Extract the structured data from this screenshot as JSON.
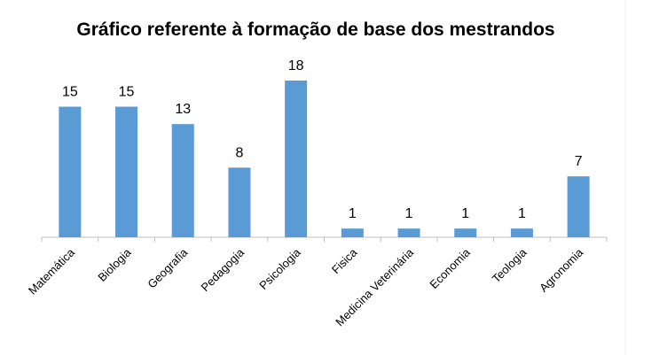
{
  "chart_data": {
    "type": "bar",
    "title": "Gráfico referente à formação de base dos mestrandos",
    "categories": [
      "Matemática",
      "Biologia",
      "Geografia",
      "Pedagogia",
      "Psicologia",
      "Fisica",
      "Medicina Veterinária",
      "Economia",
      "Teologia",
      "Agronomia"
    ],
    "values": [
      15,
      15,
      13,
      8,
      18,
      1,
      1,
      1,
      1,
      7
    ],
    "color": "#5b9bd5",
    "ylim": [
      0,
      18
    ]
  }
}
